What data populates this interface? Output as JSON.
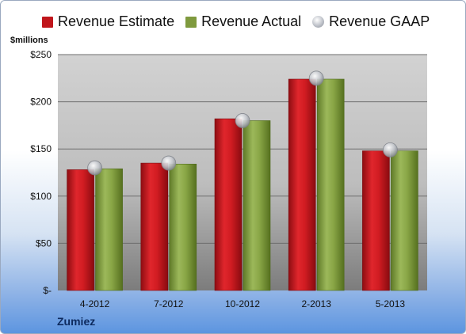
{
  "legend": {
    "estimate": "Revenue Estimate",
    "actual": "Revenue Actual",
    "gaap": "Revenue GAAP"
  },
  "unit_label": "$millions",
  "company": "Zumiez",
  "colors": {
    "estimate": "#c0161c",
    "actual": "#7f9a3e",
    "gaap": "#b8bcc4",
    "plot_bg_top": "#cfcfcf",
    "plot_bg_bottom": "#7f7f7f"
  },
  "chart_data": {
    "type": "bar",
    "categories": [
      "4-2012",
      "7-2012",
      "10-2012",
      "2-2013",
      "5-2013"
    ],
    "series": [
      {
        "name": "Revenue Estimate",
        "values": [
          128,
          135,
          182,
          224,
          148
        ]
      },
      {
        "name": "Revenue Actual",
        "values": [
          129,
          134,
          180,
          224,
          148
        ]
      },
      {
        "name": "Revenue GAAP",
        "values": [
          130,
          135,
          180,
          225,
          149
        ],
        "style": "marker"
      }
    ],
    "ylim": [
      0,
      250
    ],
    "yticks": [
      0,
      50,
      100,
      150,
      200,
      250
    ],
    "ytick_labels": [
      "$-",
      "$50",
      "$100",
      "$150",
      "$200",
      "$250"
    ],
    "ylabel": "$millions",
    "grid": true,
    "legend_position": "top"
  }
}
